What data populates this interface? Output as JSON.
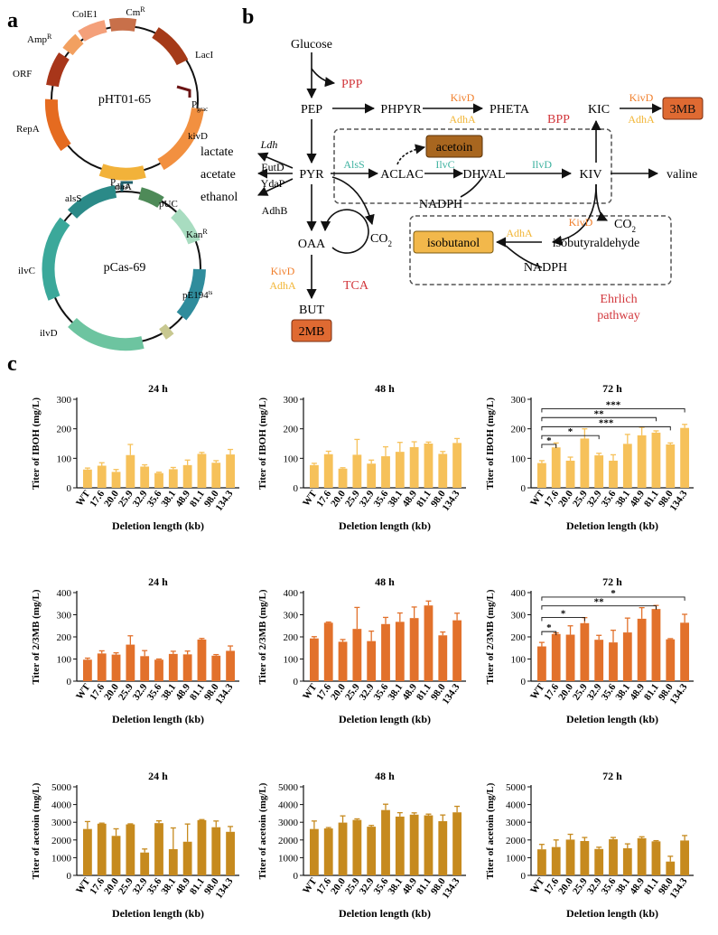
{
  "panels": {
    "a": "a",
    "b": "b",
    "c": "c"
  },
  "plasmids": [
    {
      "name": "pHT01-65",
      "label_sup": "",
      "genes": [
        "ColE1",
        "Cm",
        "LacI",
        "P",
        "kivD",
        "adhA",
        "RepA",
        "ORF",
        "Amp"
      ],
      "sups": {
        "Cm": "R",
        "Amp": "R"
      },
      "subs": {
        "P": "grac"
      }
    },
    {
      "name": "pCas-69",
      "genes": [
        "alsS",
        "P",
        "pUC",
        "Kan",
        "pE194",
        "ilvD",
        "ilvC"
      ],
      "sups": {
        "Kan": "R",
        "pE194": "ts"
      },
      "subs": {
        "P": "mnsP"
      }
    }
  ],
  "pathway": {
    "metabolites": [
      "Glucose",
      "PPP",
      "PEP",
      "PHPYR",
      "PHETA",
      "BPP",
      "KIC",
      "3MB",
      "lactate",
      "acetate",
      "ethanol",
      "PYR",
      "ACLAC",
      "acetoin",
      "DHVAL",
      "KIV",
      "valine",
      "NADPH",
      "OAA",
      "CO",
      "CO",
      "isobutanol",
      "isobutyraldehyde",
      "NADPH",
      "TCA",
      "BUT",
      "2MB"
    ],
    "co2_sub": "2",
    "enzymes": [
      "KivD",
      "AdhA",
      "KivD",
      "AdhA",
      "Ldh",
      "EutD",
      "YdaP",
      "AdhB",
      "AlsS",
      "IlvC",
      "IlvD",
      "KivD",
      "AdhA",
      "KivD",
      "AdhA"
    ],
    "ehrlich": [
      "Ehrlich",
      "pathway"
    ]
  },
  "chart_data": [
    {
      "type": "bar",
      "title": "24 h",
      "ylabel": "Titer of IBOH (mg/L)",
      "xlabel": "Deletion length (kb)",
      "categories": [
        "WT",
        "17.6",
        "20.0",
        "25.9",
        "32.9",
        "35.6",
        "38.1",
        "48.9",
        "81.1",
        "98.0",
        "134.3"
      ],
      "values": [
        62,
        75,
        54,
        111,
        72,
        50,
        63,
        77,
        115,
        85,
        113
      ],
      "errors": [
        5,
        10,
        8,
        36,
        6,
        3,
        6,
        17,
        5,
        7,
        17
      ],
      "ylim": [
        0,
        300
      ],
      "yticks": [
        0,
        100,
        200,
        300
      ],
      "color": "#F6C15A",
      "significance": []
    },
    {
      "type": "bar",
      "title": "48 h",
      "ylabel": "Titer of IBOH (mg/L)",
      "xlabel": "Deletion length (kb)",
      "categories": [
        "WT",
        "17.6",
        "20.0",
        "25.9",
        "32.9",
        "35.6",
        "38.1",
        "48.9",
        "81.1",
        "98.0",
        "134.3"
      ],
      "values": [
        77,
        114,
        65,
        112,
        82,
        107,
        122,
        138,
        150,
        115,
        152
      ],
      "errors": [
        6,
        10,
        3,
        52,
        12,
        32,
        32,
        18,
        5,
        8,
        15
      ],
      "ylim": [
        0,
        300
      ],
      "yticks": [
        0,
        100,
        200,
        300
      ],
      "color": "#F6C15A",
      "significance": []
    },
    {
      "type": "bar",
      "title": "72 h",
      "ylabel": "Titer of IBOH (mg/L)",
      "xlabel": "Deletion length (kb)",
      "categories": [
        "WT",
        "17.6",
        "20.0",
        "25.9",
        "32.9",
        "35.6",
        "38.1",
        "48.9",
        "81.1",
        "98.0",
        "134.3"
      ],
      "values": [
        84,
        137,
        92,
        167,
        110,
        92,
        149,
        178,
        187,
        147,
        203
      ],
      "errors": [
        8,
        15,
        12,
        33,
        7,
        20,
        32,
        27,
        6,
        5,
        12
      ],
      "ylim": [
        0,
        300
      ],
      "yticks": [
        0,
        100,
        200,
        300
      ],
      "color": "#F6C15A",
      "significance": [
        {
          "to": 1,
          "label": "*",
          "y": 147
        },
        {
          "to": 4,
          "label": "*",
          "y": 177
        },
        {
          "to": 9,
          "label": "***",
          "y": 207
        },
        {
          "to": 8,
          "label": "**",
          "y": 238
        },
        {
          "to": 10,
          "label": "***",
          "y": 268
        }
      ]
    },
    {
      "type": "bar",
      "title": "24 h",
      "ylabel": "Titer of 2/3MB (mg/L)",
      "xlabel": "Deletion length (kb)",
      "categories": [
        "WT",
        "17.6",
        "20.0",
        "25.9",
        "32.9",
        "35.6",
        "38.1",
        "48.9",
        "81.1",
        "98.0",
        "134.3"
      ],
      "values": [
        97,
        125,
        120,
        165,
        113,
        97,
        123,
        121,
        188,
        115,
        137
      ],
      "errors": [
        7,
        12,
        8,
        40,
        25,
        3,
        12,
        15,
        5,
        5,
        22
      ],
      "ylim": [
        0,
        400
      ],
      "yticks": [
        0,
        100,
        200,
        300,
        400
      ],
      "color": "#E2712B",
      "significance": []
    },
    {
      "type": "bar",
      "title": "48 h",
      "ylabel": "Titer of 2/3MB (mg/L)",
      "xlabel": "Deletion length (kb)",
      "categories": [
        "WT",
        "17.6",
        "20.0",
        "25.9",
        "32.9",
        "35.6",
        "38.1",
        "48.9",
        "81.1",
        "98.0",
        "134.3"
      ],
      "values": [
        193,
        264,
        178,
        236,
        181,
        258,
        268,
        285,
        342,
        207,
        275
      ],
      "errors": [
        8,
        3,
        10,
        97,
        45,
        30,
        40,
        50,
        20,
        15,
        32
      ],
      "ylim": [
        0,
        400
      ],
      "yticks": [
        0,
        100,
        200,
        300,
        400
      ],
      "color": "#E2712B",
      "significance": []
    },
    {
      "type": "bar",
      "title": "72 h",
      "ylabel": "Titer of 2/3MB (mg/L)",
      "xlabel": "Deletion length (kb)",
      "categories": [
        "WT",
        "17.6",
        "20.0",
        "25.9",
        "32.9",
        "35.6",
        "38.1",
        "48.9",
        "81.1",
        "98.0",
        "134.3"
      ],
      "values": [
        157,
        213,
        210,
        262,
        187,
        175,
        220,
        282,
        326,
        189,
        264
      ],
      "errors": [
        18,
        5,
        40,
        25,
        20,
        55,
        65,
        50,
        16,
        3,
        38
      ],
      "ylim": [
        0,
        400
      ],
      "yticks": [
        0,
        100,
        200,
        300,
        400
      ],
      "color": "#E2712B",
      "significance": [
        {
          "to": 1,
          "label": "*",
          "y": 224
        },
        {
          "to": 3,
          "label": "*",
          "y": 288
        },
        {
          "to": 8,
          "label": "**",
          "y": 340
        },
        {
          "to": 10,
          "label": "*",
          "y": 380
        }
      ]
    },
    {
      "type": "bar",
      "title": "24 h",
      "ylabel": "Titer of acetoin (mg/L)",
      "xlabel": "Deletion length (kb)",
      "categories": [
        "WT",
        "17.6",
        "20.0",
        "25.9",
        "32.9",
        "35.6",
        "38.1",
        "48.9",
        "81.1",
        "98.0",
        "134.3"
      ],
      "values": [
        2620,
        2920,
        2230,
        2880,
        1290,
        2950,
        1480,
        1900,
        3120,
        2720,
        2460
      ],
      "errors": [
        420,
        30,
        400,
        30,
        200,
        130,
        1200,
        1000,
        30,
        350,
        300
      ],
      "ylim": [
        0,
        5000
      ],
      "yticks": [
        0,
        1000,
        2000,
        3000,
        4000,
        5000
      ],
      "color": "#C68A1E",
      "significance": []
    },
    {
      "type": "bar",
      "title": "48 h",
      "ylabel": "Titer of acetoin (mg/L)",
      "xlabel": "Deletion length (kb)",
      "categories": [
        "WT",
        "17.6",
        "20.0",
        "25.9",
        "32.9",
        "35.6",
        "38.1",
        "48.9",
        "81.1",
        "98.0",
        "134.3"
      ],
      "values": [
        2620,
        2650,
        2980,
        3130,
        2750,
        3690,
        3320,
        3430,
        3390,
        3060,
        3560
      ],
      "errors": [
        450,
        50,
        380,
        60,
        70,
        330,
        220,
        100,
        70,
        350,
        340
      ],
      "ylim": [
        0,
        5000
      ],
      "yticks": [
        0,
        1000,
        2000,
        3000,
        4000,
        5000
      ],
      "color": "#C68A1E",
      "significance": []
    },
    {
      "type": "bar",
      "title": "72 h",
      "ylabel": "Titer of acetoin (mg/L)",
      "xlabel": "Deletion length (kb)",
      "categories": [
        "WT",
        "17.6",
        "20.0",
        "25.9",
        "32.9",
        "35.6",
        "38.1",
        "48.9",
        "81.1",
        "98.0",
        "134.3"
      ],
      "values": [
        1470,
        1600,
        2020,
        1940,
        1490,
        2040,
        1530,
        2100,
        1920,
        780,
        1970
      ],
      "errors": [
        280,
        400,
        300,
        200,
        100,
        100,
        250,
        80,
        40,
        300,
        280
      ],
      "ylim": [
        0,
        5000
      ],
      "yticks": [
        0,
        1000,
        2000,
        3000,
        4000,
        5000
      ],
      "color": "#C68A1E",
      "significance": []
    }
  ],
  "colors": {
    "ppp": "#D2373C",
    "enzyme_orange": "#F07F2C",
    "enzyme_yellow": "#F2B535",
    "enzyme_green": "#3EB2A0",
    "box_3mb": "#DF6A32",
    "box_2mb": "#DF6A32",
    "box_acetoin": "#A8661F",
    "box_isobutanol": "#F2B84B"
  }
}
